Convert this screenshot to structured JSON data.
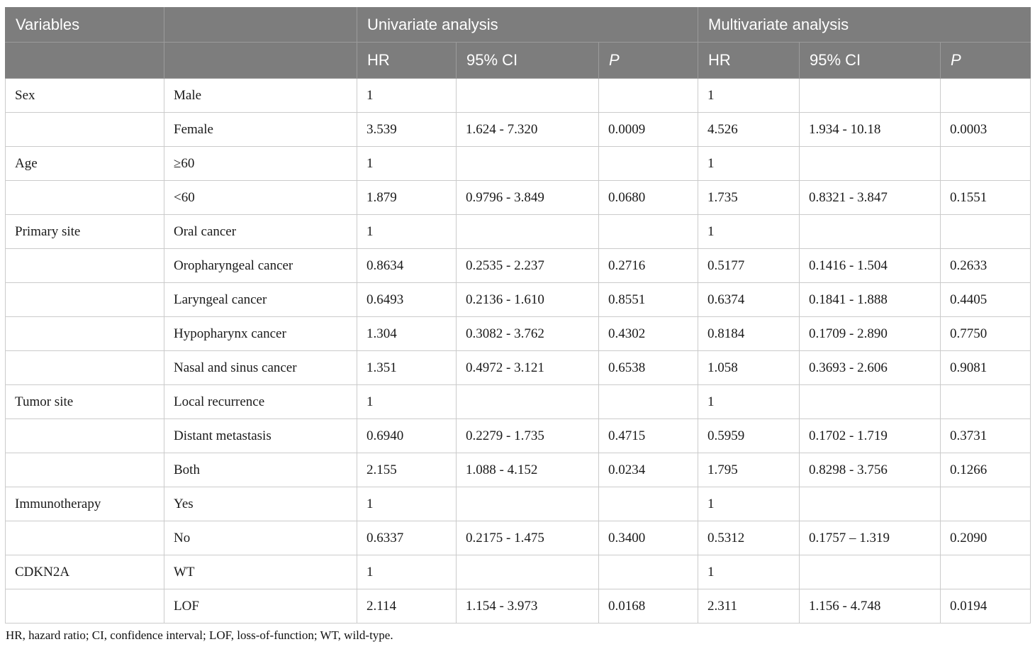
{
  "table": {
    "header": {
      "variables_label": "Variables",
      "group1": "Univariate analysis",
      "group2": "Multivariate analysis",
      "sub": [
        "HR",
        "95% CI",
        "P",
        "HR",
        "95% CI",
        "P"
      ]
    },
    "rows": [
      {
        "variable": "Sex",
        "category": "Male",
        "uni_hr": "1",
        "uni_ci": "",
        "uni_p": "",
        "multi_hr": "1",
        "multi_ci": "",
        "multi_p": ""
      },
      {
        "variable": "",
        "category": "Female",
        "uni_hr": "3.539",
        "uni_ci": "1.624 - 7.320",
        "uni_p": "0.0009",
        "multi_hr": "4.526",
        "multi_ci": "1.934 - 10.18",
        "multi_p": "0.0003"
      },
      {
        "variable": "Age",
        "category": "≥60",
        "uni_hr": "1",
        "uni_ci": "",
        "uni_p": "",
        "multi_hr": "1",
        "multi_ci": "",
        "multi_p": ""
      },
      {
        "variable": "",
        "category": "<60",
        "uni_hr": "1.879",
        "uni_ci": "0.9796 - 3.849",
        "uni_p": "0.0680",
        "multi_hr": "1.735",
        "multi_ci": "0.8321 - 3.847",
        "multi_p": "0.1551"
      },
      {
        "variable": "Primary site",
        "category": "Oral cancer",
        "uni_hr": "1",
        "uni_ci": "",
        "uni_p": "",
        "multi_hr": "1",
        "multi_ci": "",
        "multi_p": ""
      },
      {
        "variable": "",
        "category": "Oropharyngeal cancer",
        "uni_hr": "0.8634",
        "uni_ci": "0.2535 - 2.237",
        "uni_p": "0.2716",
        "multi_hr": "0.5177",
        "multi_ci": "0.1416 - 1.504",
        "multi_p": "0.2633"
      },
      {
        "variable": "",
        "category": "Laryngeal cancer",
        "uni_hr": "0.6493",
        "uni_ci": "0.2136 - 1.610",
        "uni_p": "0.8551",
        "multi_hr": "0.6374",
        "multi_ci": "0.1841 - 1.888",
        "multi_p": "0.4405"
      },
      {
        "variable": "",
        "category": "Hypopharynx cancer",
        "uni_hr": "1.304",
        "uni_ci": "0.3082 - 3.762",
        "uni_p": "0.4302",
        "multi_hr": "0.8184",
        "multi_ci": "0.1709 - 2.890",
        "multi_p": "0.7750"
      },
      {
        "variable": "",
        "category": "Nasal and sinus cancer",
        "uni_hr": "1.351",
        "uni_ci": "0.4972 - 3.121",
        "uni_p": "0.6538",
        "multi_hr": "1.058",
        "multi_ci": "0.3693 - 2.606",
        "multi_p": "0.9081"
      },
      {
        "variable": "Tumor site",
        "category": "Local recurrence",
        "uni_hr": "1",
        "uni_ci": "",
        "uni_p": "",
        "multi_hr": "1",
        "multi_ci": "",
        "multi_p": ""
      },
      {
        "variable": "",
        "category": "Distant metastasis",
        "uni_hr": "0.6940",
        "uni_ci": "0.2279 - 1.735",
        "uni_p": "0.4715",
        "multi_hr": "0.5959",
        "multi_ci": "0.1702 - 1.719",
        "multi_p": "0.3731"
      },
      {
        "variable": "",
        "category": "Both",
        "uni_hr": "2.155",
        "uni_ci": "1.088 - 4.152",
        "uni_p": "0.0234",
        "multi_hr": "1.795",
        "multi_ci": "0.8298 - 3.756",
        "multi_p": "0.1266"
      },
      {
        "variable": "Immunotherapy",
        "category": "Yes",
        "uni_hr": "1",
        "uni_ci": "",
        "uni_p": "",
        "multi_hr": "1",
        "multi_ci": "",
        "multi_p": ""
      },
      {
        "variable": "",
        "category": "No",
        "uni_hr": "0.6337",
        "uni_ci": "0.2175 - 1.475",
        "uni_p": "0.3400",
        "multi_hr": "0.5312",
        "multi_ci": "0.1757 – 1.319",
        "multi_p": "0.2090"
      },
      {
        "variable": "CDKN2A",
        "category": "WT",
        "uni_hr": "1",
        "uni_ci": "",
        "uni_p": "",
        "multi_hr": "1",
        "multi_ci": "",
        "multi_p": ""
      },
      {
        "variable": "",
        "category": "LOF",
        "uni_hr": "2.114",
        "uni_ci": "1.154 - 3.973",
        "uni_p": "0.0168",
        "multi_hr": "2.311",
        "multi_ci": "1.156 - 4.748",
        "multi_p": "0.0194"
      }
    ],
    "footnote": "HR, hazard ratio; CI, confidence interval; LOF, loss-of-function; WT, wild-type.",
    "colors": {
      "header_bg": "#7d7d7d",
      "header_text": "#ffffff",
      "header_divider": "#9b9b9b",
      "body_border": "#cbcbcb"
    }
  }
}
